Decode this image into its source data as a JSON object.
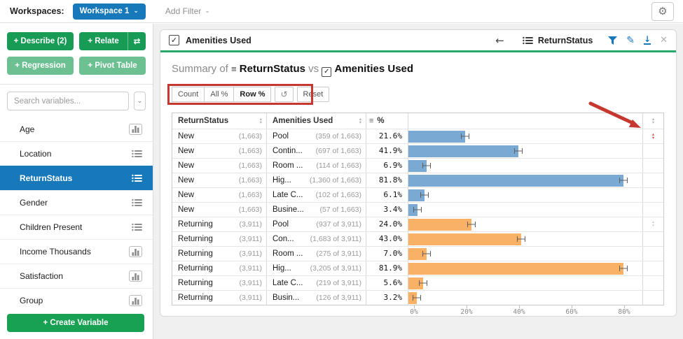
{
  "topbar": {
    "workspaces_label": "Workspaces:",
    "workspace_button": "Workspace 1",
    "add_filter_label": "Add Filter"
  },
  "sidebar": {
    "describe_label": "+ Describe (2)",
    "relate_label": "+ Relate",
    "regression_label": "+ Regression",
    "pivot_table_label": "+ Pivot Table",
    "search_placeholder": "Search variables...",
    "create_variable_label": "+ Create Variable",
    "variables": [
      {
        "name": "Age",
        "icon": "histogram",
        "selected": false
      },
      {
        "name": "Location",
        "icon": "list",
        "selected": false
      },
      {
        "name": "ReturnStatus",
        "icon": "list",
        "selected": true
      },
      {
        "name": "Gender",
        "icon": "list",
        "selected": false
      },
      {
        "name": "Children Present",
        "icon": "list",
        "selected": false
      },
      {
        "name": "Income Thousands",
        "icon": "histogram",
        "selected": false
      },
      {
        "name": "Satisfaction",
        "icon": "histogram",
        "selected": false
      },
      {
        "name": "Group",
        "icon": "histogram",
        "selected": false
      }
    ]
  },
  "panel": {
    "header": {
      "left_title": "Amenities Used",
      "right_title": "ReturnStatus"
    },
    "title": {
      "prefix": "Summary of",
      "variable1": "ReturnStatus",
      "connector": "vs",
      "variable2": "Amenities Used"
    },
    "toolbar": {
      "count_label": "Count",
      "all_pct_label": "All %",
      "row_pct_label": "Row %",
      "reset_label": "Reset",
      "active": "Row %"
    },
    "table": {
      "col1_header": "ReturnStatus",
      "col2_header": "Amenities Used",
      "col3_header": "%",
      "rows": [
        {
          "group": "New",
          "group_n": "(1,663)",
          "amenity": "Pool",
          "fraction": "(359 of 1,663)",
          "pct_label": "21.6%",
          "pct": 21.6,
          "series": "new",
          "right_icon": "red-sort"
        },
        {
          "group": "New",
          "group_n": "(1,663)",
          "amenity": "Contin...",
          "fraction": "(697 of 1,663)",
          "pct_label": "41.9%",
          "pct": 41.9,
          "series": "new",
          "right_icon": ""
        },
        {
          "group": "New",
          "group_n": "(1,663)",
          "amenity": "Room ...",
          "fraction": "(114 of 1,663)",
          "pct_label": "6.9%",
          "pct": 6.9,
          "series": "new",
          "right_icon": ""
        },
        {
          "group": "New",
          "group_n": "(1,663)",
          "amenity": "Hig...",
          "fraction": "(1,360 of 1,663)",
          "pct_label": "81.8%",
          "pct": 81.8,
          "series": "new",
          "right_icon": ""
        },
        {
          "group": "New",
          "group_n": "(1,663)",
          "amenity": "Late C...",
          "fraction": "(102 of 1,663)",
          "pct_label": "6.1%",
          "pct": 6.1,
          "series": "new",
          "right_icon": ""
        },
        {
          "group": "New",
          "group_n": "(1,663)",
          "amenity": "Busine...",
          "fraction": "(57 of 1,663)",
          "pct_label": "3.4%",
          "pct": 3.4,
          "series": "new",
          "right_icon": ""
        },
        {
          "group": "Returning",
          "group_n": "(3,911)",
          "amenity": "Pool",
          "fraction": "(937 of 3,911)",
          "pct_label": "24.0%",
          "pct": 24.0,
          "series": "returning",
          "right_icon": "gray-sort"
        },
        {
          "group": "Returning",
          "group_n": "(3,911)",
          "amenity": "Con...",
          "fraction": "(1,683 of 3,911)",
          "pct_label": "43.0%",
          "pct": 43.0,
          "series": "returning",
          "right_icon": ""
        },
        {
          "group": "Returning",
          "group_n": "(3,911)",
          "amenity": "Room ...",
          "fraction": "(275 of 3,911)",
          "pct_label": "7.0%",
          "pct": 7.0,
          "series": "returning",
          "right_icon": ""
        },
        {
          "group": "Returning",
          "group_n": "(3,911)",
          "amenity": "Hig...",
          "fraction": "(3,205 of 3,911)",
          "pct_label": "81.9%",
          "pct": 81.9,
          "series": "returning",
          "right_icon": ""
        },
        {
          "group": "Returning",
          "group_n": "(3,911)",
          "amenity": "Late C...",
          "fraction": "(219 of 3,911)",
          "pct_label": "5.6%",
          "pct": 5.6,
          "series": "returning",
          "right_icon": ""
        },
        {
          "group": "Returning",
          "group_n": "(3,911)",
          "amenity": "Busin...",
          "fraction": "(126 of 3,911)",
          "pct_label": "3.2%",
          "pct": 3.2,
          "series": "returning",
          "right_icon": ""
        }
      ],
      "axis": [
        {
          "label": "0%",
          "value": 0
        },
        {
          "label": "20%",
          "value": 20
        },
        {
          "label": "40%",
          "value": 40
        },
        {
          "label": "60%",
          "value": 60
        },
        {
          "label": "80%",
          "value": 80
        }
      ]
    }
  },
  "colors": {
    "accent_blue": "#1779BA",
    "bar_blue": "#7AA9D4",
    "bar_orange": "#F9B166",
    "green_dark": "#189B55",
    "green_light": "#6CC092",
    "green_create": "#18A152",
    "green_underline": "#28A869",
    "annotation_red": "#C6382F"
  },
  "chart_data": {
    "type": "bar",
    "orientation": "horizontal",
    "categories": [
      "Pool",
      "Contin...",
      "Room ...",
      "Hig...",
      "Late C...",
      "Busine..."
    ],
    "series": [
      {
        "name": "New",
        "values": [
          21.6,
          41.9,
          6.9,
          81.8,
          6.1,
          3.4
        ]
      },
      {
        "name": "Returning",
        "values": [
          24.0,
          43.0,
          7.0,
          81.9,
          5.6,
          3.2
        ]
      }
    ],
    "xlabel": "",
    "ylabel": "",
    "tick_labels": [
      "0%",
      "20%",
      "40%",
      "60%",
      "80%"
    ],
    "xlim": [
      0,
      89
    ],
    "grid": false
  }
}
